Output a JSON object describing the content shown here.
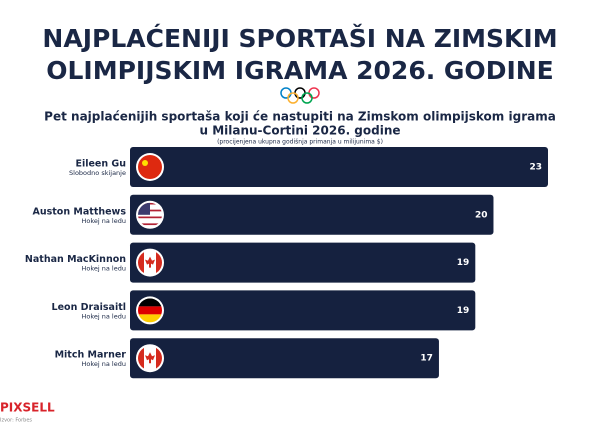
{
  "chart_data": {
    "type": "bar",
    "title": [
      "NAJPLAĆENIJI SPORTAŠI NA ZIMSKIM",
      "OLIMPIJSKIM IGRAMA 2026. GODINE"
    ],
    "subtitle": [
      "Pet najplaćenijih sportaša koji će nastupiti na Zimskom olimpijskom igrama",
      "u Milanu-Cortini 2026. godine"
    ],
    "note": "(procijenjena ukupna godišnja primanja u milijunima $)",
    "categories": [
      "Eileen Gu",
      "Auston Matthews",
      "Nathan MacKinnon",
      "Leon Draisaitl",
      "Mitch Marner"
    ],
    "category_notes": [
      "Slobodno skijanje",
      "Hokej na ledu",
      "Hokej na ledu",
      "Hokej na ledu",
      "Hokej na ledu"
    ],
    "values": [
      23,
      20,
      19,
      19,
      17
    ],
    "color": "#15213f",
    "brand": "PIXSELL",
    "source": "Izvor: Forbes"
  }
}
